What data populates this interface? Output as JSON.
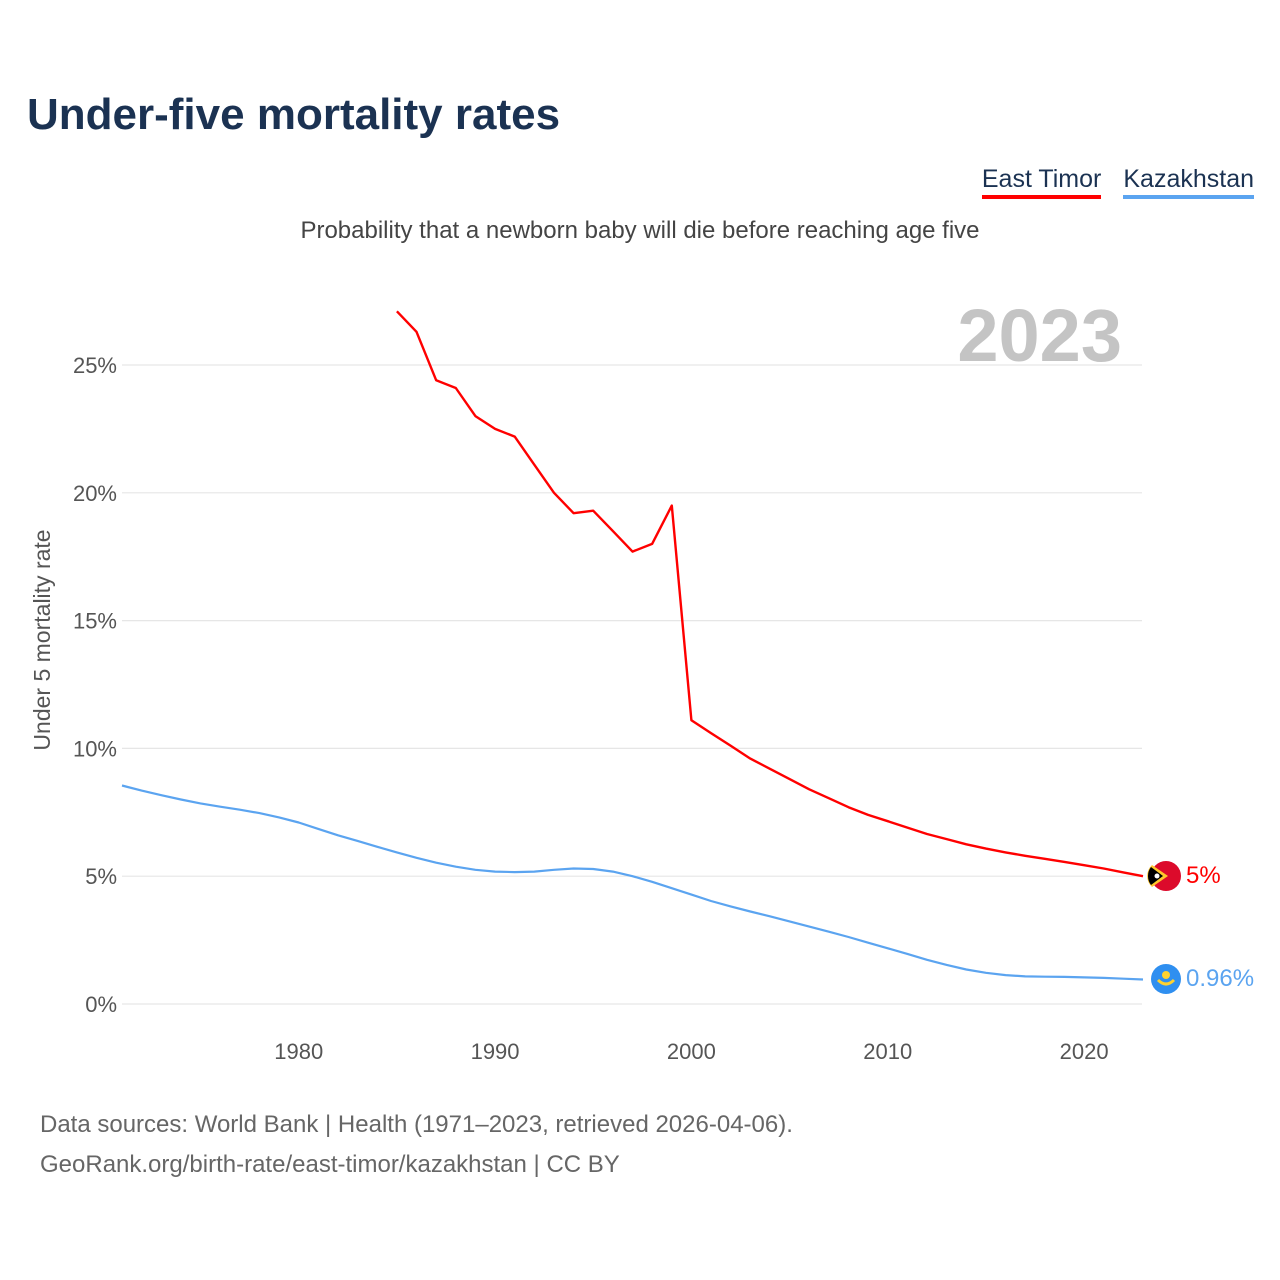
{
  "title": "Under-five mortality rates",
  "subtitle": "Probability that a newborn baby will die before reaching age five",
  "year_watermark": "2023",
  "footer": {
    "line1": "Data sources: World Bank | Health (1971–2023, retrieved 2026-04-06).",
    "line2": "GeoRank.org/birth-rate/east-timor/kazakhstan | CC BY"
  },
  "chart_data": {
    "type": "line",
    "title": "Under-five mortality rates",
    "xlabel": "",
    "ylabel": "Under 5 mortality rate",
    "xlim": [
      1971,
      2023
    ],
    "ylim": [
      0,
      27.5
    ],
    "x_ticks": [
      "1980",
      "1990",
      "2000",
      "2010",
      "2020"
    ],
    "x_tick_values": [
      1980,
      1990,
      2000,
      2010,
      2020
    ],
    "y_ticks": [
      "0%",
      "5%",
      "10%",
      "15%",
      "20%",
      "25%"
    ],
    "y_tick_values": [
      0,
      5,
      10,
      15,
      20,
      25
    ],
    "grid": true,
    "legend_placement": "top-right",
    "series": [
      {
        "name": "East Timor",
        "color": "#ff0000",
        "end_label": "5%",
        "x_start": 1985,
        "values": [
          27.1,
          26.3,
          24.4,
          24.1,
          23.0,
          22.5,
          22.2,
          21.1,
          20.0,
          19.2,
          19.3,
          18.5,
          17.7,
          18.0,
          19.5,
          11.1,
          10.6,
          10.1,
          9.6,
          9.2,
          8.8,
          8.4,
          8.05,
          7.7,
          7.4,
          7.15,
          6.9,
          6.65,
          6.45,
          6.25,
          6.08,
          5.93,
          5.8,
          5.68,
          5.56,
          5.43,
          5.3,
          5.15,
          5.0
        ]
      },
      {
        "name": "Kazakhstan",
        "color": "#5ba4f0",
        "end_label": "0.96%",
        "x_start": 1971,
        "values": [
          8.55,
          8.35,
          8.17,
          8.0,
          7.85,
          7.72,
          7.6,
          7.47,
          7.3,
          7.1,
          6.85,
          6.6,
          6.38,
          6.15,
          5.93,
          5.72,
          5.53,
          5.37,
          5.25,
          5.18,
          5.16,
          5.18,
          5.25,
          5.3,
          5.28,
          5.18,
          5.0,
          4.78,
          4.53,
          4.28,
          4.03,
          3.82,
          3.62,
          3.43,
          3.23,
          3.03,
          2.83,
          2.62,
          2.4,
          2.18,
          1.96,
          1.73,
          1.53,
          1.35,
          1.22,
          1.13,
          1.08,
          1.07,
          1.06,
          1.04,
          1.02,
          0.99,
          0.96
        ]
      }
    ]
  }
}
